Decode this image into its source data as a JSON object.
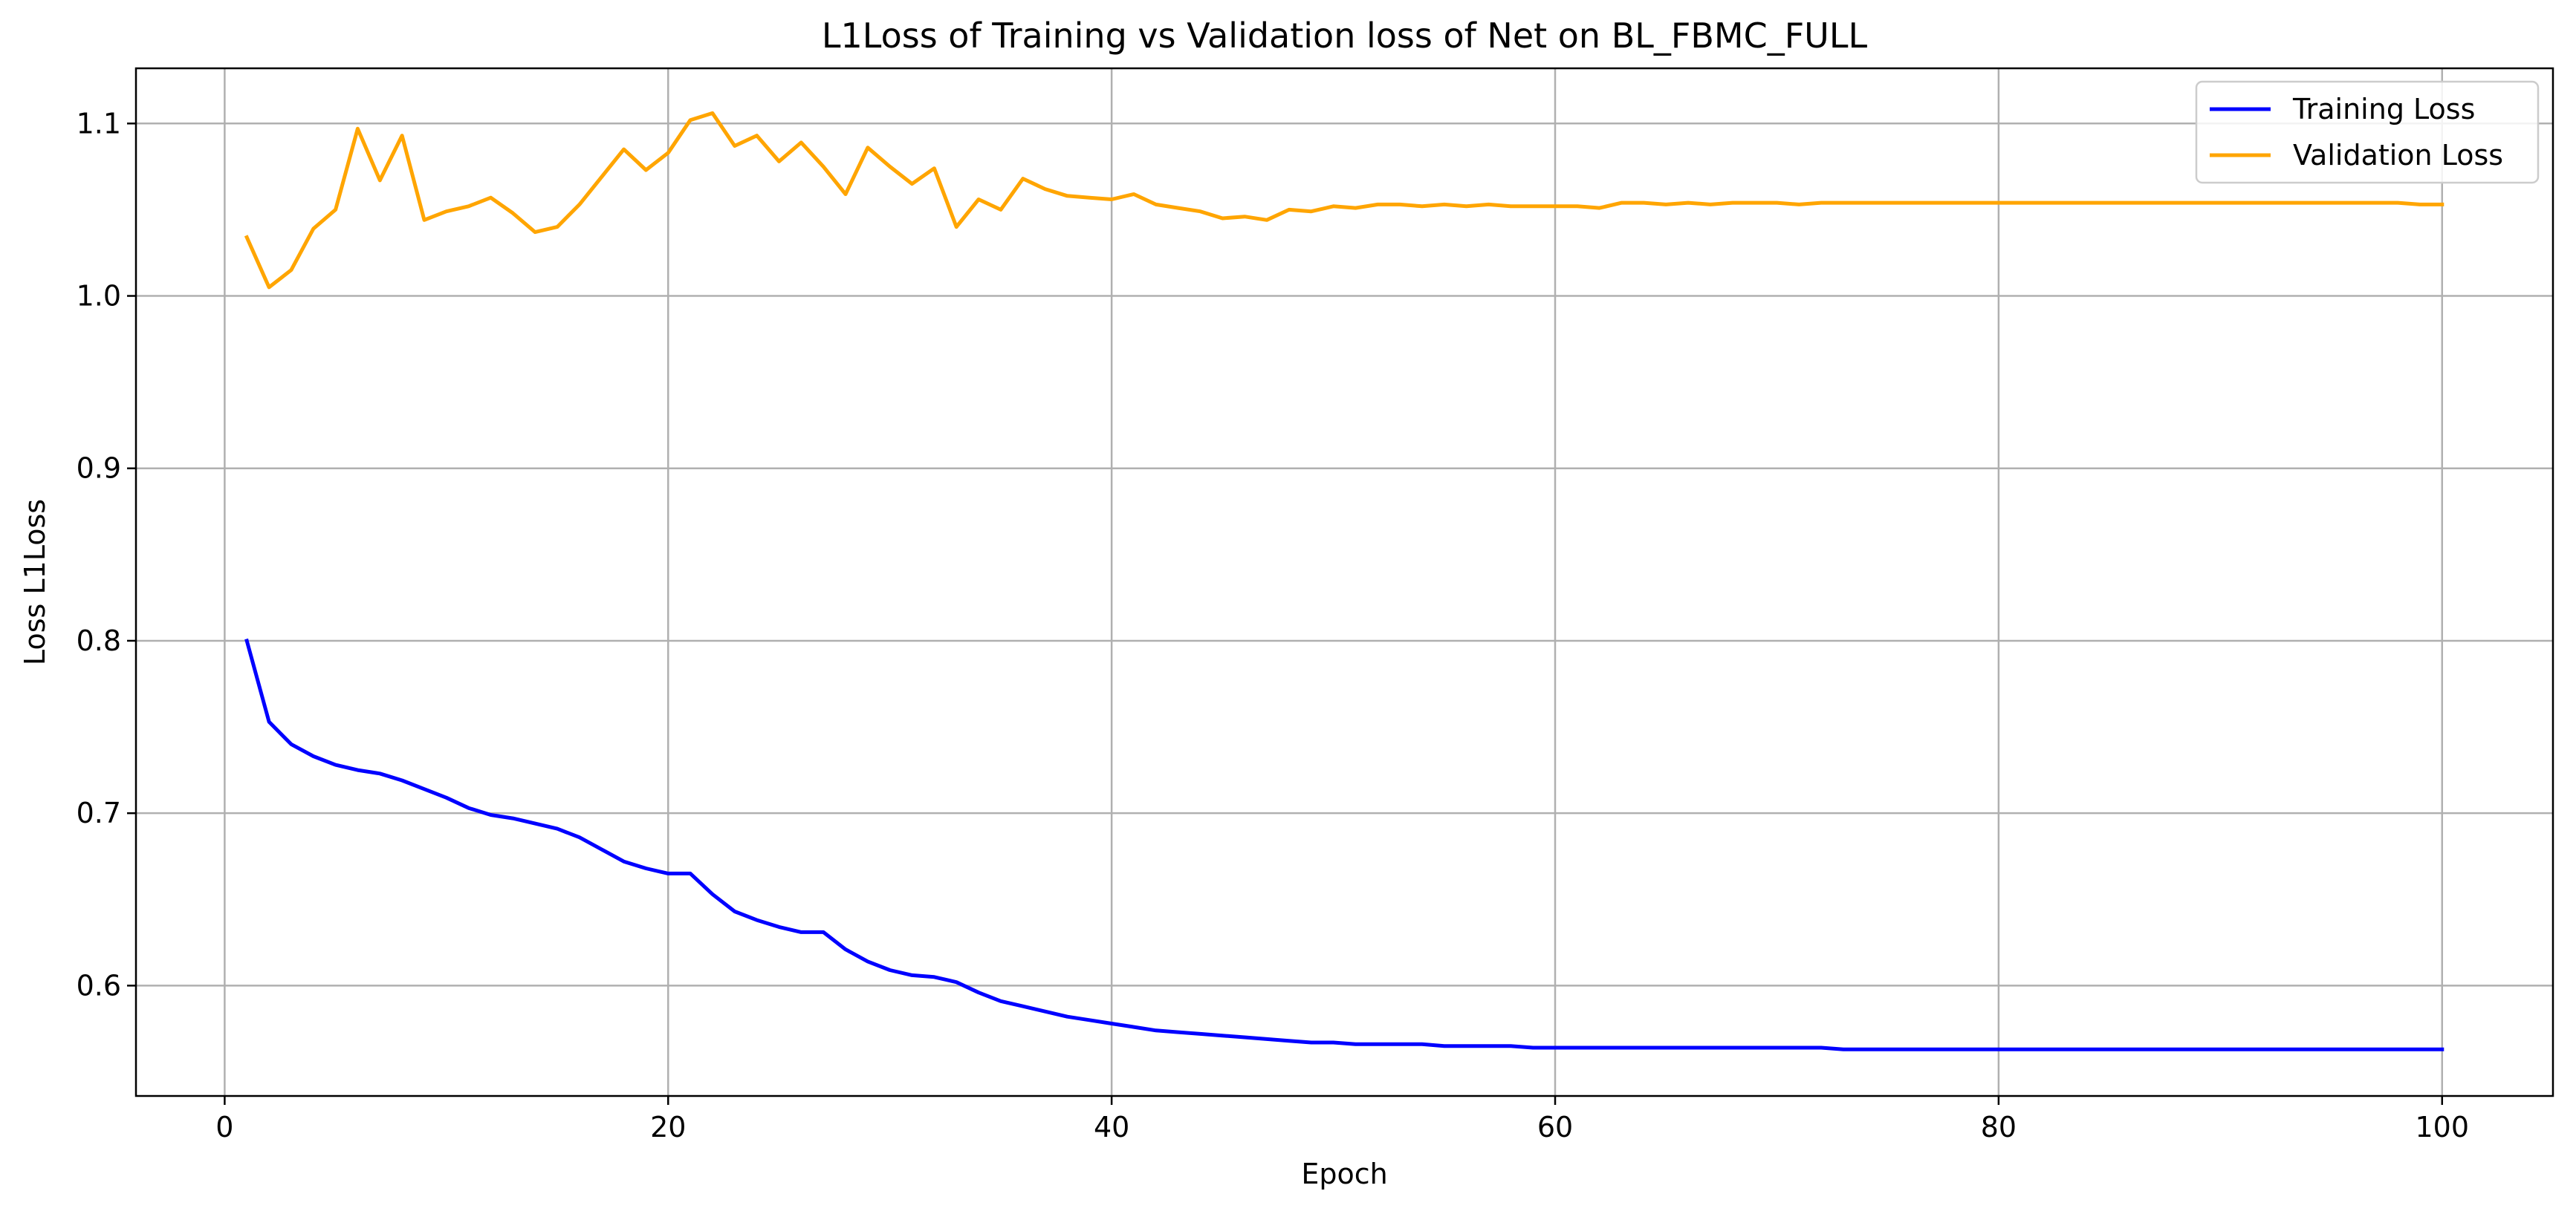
{
  "chart_data": {
    "type": "line",
    "title": "L1Loss of Training vs Validation loss of Net on BL_FBMC_FULL",
    "xlabel": "Epoch",
    "ylabel": "Loss L1Loss",
    "xlim": [
      -4,
      105
    ],
    "ylim": [
      0.536,
      1.132
    ],
    "xticks": [
      0,
      20,
      40,
      60,
      80,
      100
    ],
    "xtick_labels": [
      "0",
      "20",
      "40",
      "60",
      "80",
      "100"
    ],
    "yticks": [
      0.6,
      0.7,
      0.8,
      0.9,
      1.0,
      1.1
    ],
    "ytick_labels": [
      "0.6",
      "0.7",
      "0.8",
      "0.9",
      "1.0",
      "1.1"
    ],
    "grid": true,
    "legend_position": "top-right",
    "x": [
      1,
      2,
      3,
      4,
      5,
      6,
      7,
      8,
      9,
      10,
      11,
      12,
      13,
      14,
      15,
      16,
      17,
      18,
      19,
      20,
      21,
      22,
      23,
      24,
      25,
      26,
      27,
      28,
      29,
      30,
      31,
      32,
      33,
      34,
      35,
      36,
      37,
      38,
      39,
      40,
      41,
      42,
      43,
      44,
      45,
      46,
      47,
      48,
      49,
      50,
      51,
      52,
      53,
      54,
      55,
      56,
      57,
      58,
      59,
      60,
      61,
      62,
      63,
      64,
      65,
      66,
      67,
      68,
      69,
      70,
      71,
      72,
      73,
      74,
      75,
      76,
      77,
      78,
      79,
      80,
      81,
      82,
      83,
      84,
      85,
      86,
      87,
      88,
      89,
      90,
      91,
      92,
      93,
      94,
      95,
      96,
      97,
      98,
      99,
      100
    ],
    "series": [
      {
        "name": "Training Loss",
        "color": "#0000ff",
        "values": [
          0.8,
          0.753,
          0.74,
          0.733,
          0.728,
          0.725,
          0.723,
          0.719,
          0.714,
          0.709,
          0.703,
          0.699,
          0.697,
          0.694,
          0.691,
          0.686,
          0.679,
          0.672,
          0.668,
          0.665,
          0.665,
          0.653,
          0.643,
          0.638,
          0.634,
          0.631,
          0.631,
          0.621,
          0.614,
          0.609,
          0.606,
          0.605,
          0.602,
          0.596,
          0.591,
          0.588,
          0.585,
          0.582,
          0.58,
          0.578,
          0.576,
          0.574,
          0.573,
          0.572,
          0.571,
          0.57,
          0.569,
          0.568,
          0.567,
          0.567,
          0.566,
          0.566,
          0.566,
          0.566,
          0.565,
          0.565,
          0.565,
          0.565,
          0.564,
          0.564,
          0.564,
          0.564,
          0.564,
          0.564,
          0.564,
          0.564,
          0.564,
          0.564,
          0.564,
          0.564,
          0.564,
          0.564,
          0.563,
          0.563,
          0.563,
          0.563,
          0.563,
          0.563,
          0.563,
          0.563,
          0.563,
          0.563,
          0.563,
          0.563,
          0.563,
          0.563,
          0.563,
          0.563,
          0.563,
          0.563,
          0.563,
          0.563,
          0.563,
          0.563,
          0.563,
          0.563,
          0.563,
          0.563,
          0.563,
          0.563
        ]
      },
      {
        "name": "Validation Loss",
        "color": "#ffa500",
        "values": [
          1.034,
          1.005,
          1.015,
          1.039,
          1.05,
          1.097,
          1.067,
          1.093,
          1.044,
          1.049,
          1.052,
          1.057,
          1.048,
          1.037,
          1.04,
          1.053,
          1.069,
          1.085,
          1.073,
          1.083,
          1.102,
          1.106,
          1.087,
          1.093,
          1.078,
          1.089,
          1.075,
          1.059,
          1.086,
          1.075,
          1.065,
          1.074,
          1.04,
          1.056,
          1.05,
          1.068,
          1.062,
          1.058,
          1.057,
          1.056,
          1.059,
          1.053,
          1.051,
          1.049,
          1.045,
          1.046,
          1.044,
          1.05,
          1.049,
          1.052,
          1.051,
          1.053,
          1.053,
          1.052,
          1.053,
          1.052,
          1.053,
          1.052,
          1.052,
          1.052,
          1.052,
          1.051,
          1.054,
          1.054,
          1.053,
          1.054,
          1.053,
          1.054,
          1.054,
          1.054,
          1.053,
          1.054,
          1.054,
          1.054,
          1.054,
          1.054,
          1.054,
          1.054,
          1.054,
          1.054,
          1.054,
          1.054,
          1.054,
          1.054,
          1.054,
          1.054,
          1.054,
          1.054,
          1.054,
          1.054,
          1.054,
          1.054,
          1.054,
          1.054,
          1.054,
          1.054,
          1.054,
          1.054,
          1.053,
          1.053
        ]
      }
    ]
  }
}
